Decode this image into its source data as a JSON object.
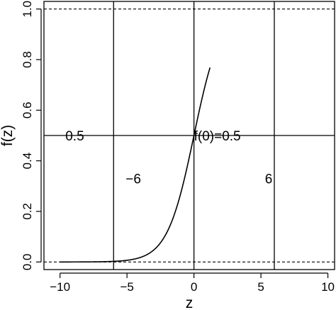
{
  "chart_data": {
    "type": "line",
    "xlabel": "z",
    "ylabel": "f(z)",
    "xlim": [
      -11.2,
      10.5
    ],
    "ylim": [
      -0.03,
      1.03
    ],
    "x_ticks": [
      {
        "value": -10,
        "label": "−10"
      },
      {
        "value": -5,
        "label": "−5"
      },
      {
        "value": 0,
        "label": "0"
      },
      {
        "value": 5,
        "label": "5"
      },
      {
        "value": 10,
        "label": "10"
      }
    ],
    "y_ticks": [
      {
        "value": 0.0,
        "label": "0.0"
      },
      {
        "value": 0.2,
        "label": "0.2"
      },
      {
        "value": 0.4,
        "label": "0.4"
      },
      {
        "value": 0.6,
        "label": "0.6"
      },
      {
        "value": 0.8,
        "label": "0.8"
      },
      {
        "value": 1.0,
        "label": "1.0"
      }
    ],
    "series": [
      {
        "function": "logistic",
        "x_range": [
          -10,
          1.2
        ],
        "color": "#000000"
      }
    ],
    "reference_lines": {
      "horizontal_dashed": [
        0,
        1
      ],
      "horizontal_solid": [
        0.5
      ],
      "vertical_solid": [
        -6,
        0,
        6
      ]
    },
    "annotations": [
      {
        "text": "0.5",
        "x": -9.6,
        "y": 0.5
      },
      {
        "text": "f(0)=0.5",
        "x": 0.0,
        "y": 0.5
      },
      {
        "text": "−6",
        "x": -5.1,
        "y": 0.33
      },
      {
        "text": "6",
        "x": 5.3,
        "y": 0.33
      }
    ]
  }
}
